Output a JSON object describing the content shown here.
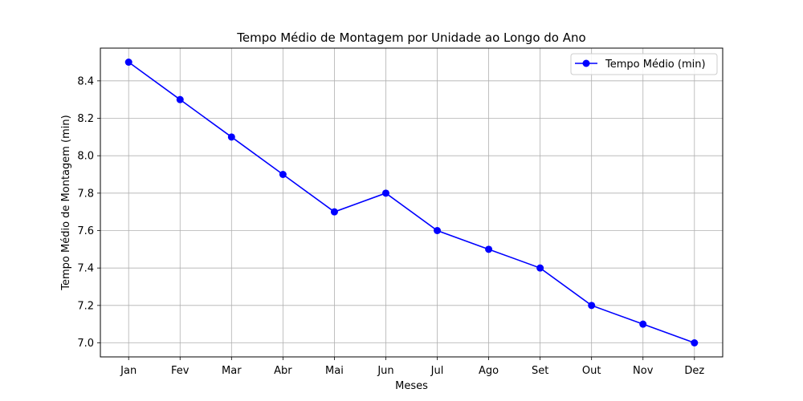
{
  "chart_data": {
    "type": "line",
    "title": "Tempo Médio de Montagem por Unidade ao Longo do Ano",
    "xlabel": "Meses",
    "ylabel": "Tempo Médio de Montagem (min)",
    "categories": [
      "Jan",
      "Fev",
      "Mar",
      "Abr",
      "Mai",
      "Jun",
      "Jul",
      "Ago",
      "Set",
      "Out",
      "Nov",
      "Dez"
    ],
    "series": [
      {
        "name": "Tempo Médio (min)",
        "values": [
          8.5,
          8.3,
          8.1,
          7.9,
          7.7,
          7.8,
          7.6,
          7.5,
          7.4,
          7.2,
          7.1,
          7.0
        ],
        "color": "#0000ff",
        "marker": "circle"
      }
    ],
    "ylim": [
      6.925,
      8.575
    ],
    "yticks": [
      7.0,
      7.2,
      7.4,
      7.6,
      7.8,
      8.0,
      8.2,
      8.4
    ],
    "ytick_labels": [
      "7.0",
      "7.2",
      "7.4",
      "7.6",
      "7.8",
      "8.0",
      "8.2",
      "8.4"
    ],
    "grid": true,
    "legend_position": "top-right"
  }
}
